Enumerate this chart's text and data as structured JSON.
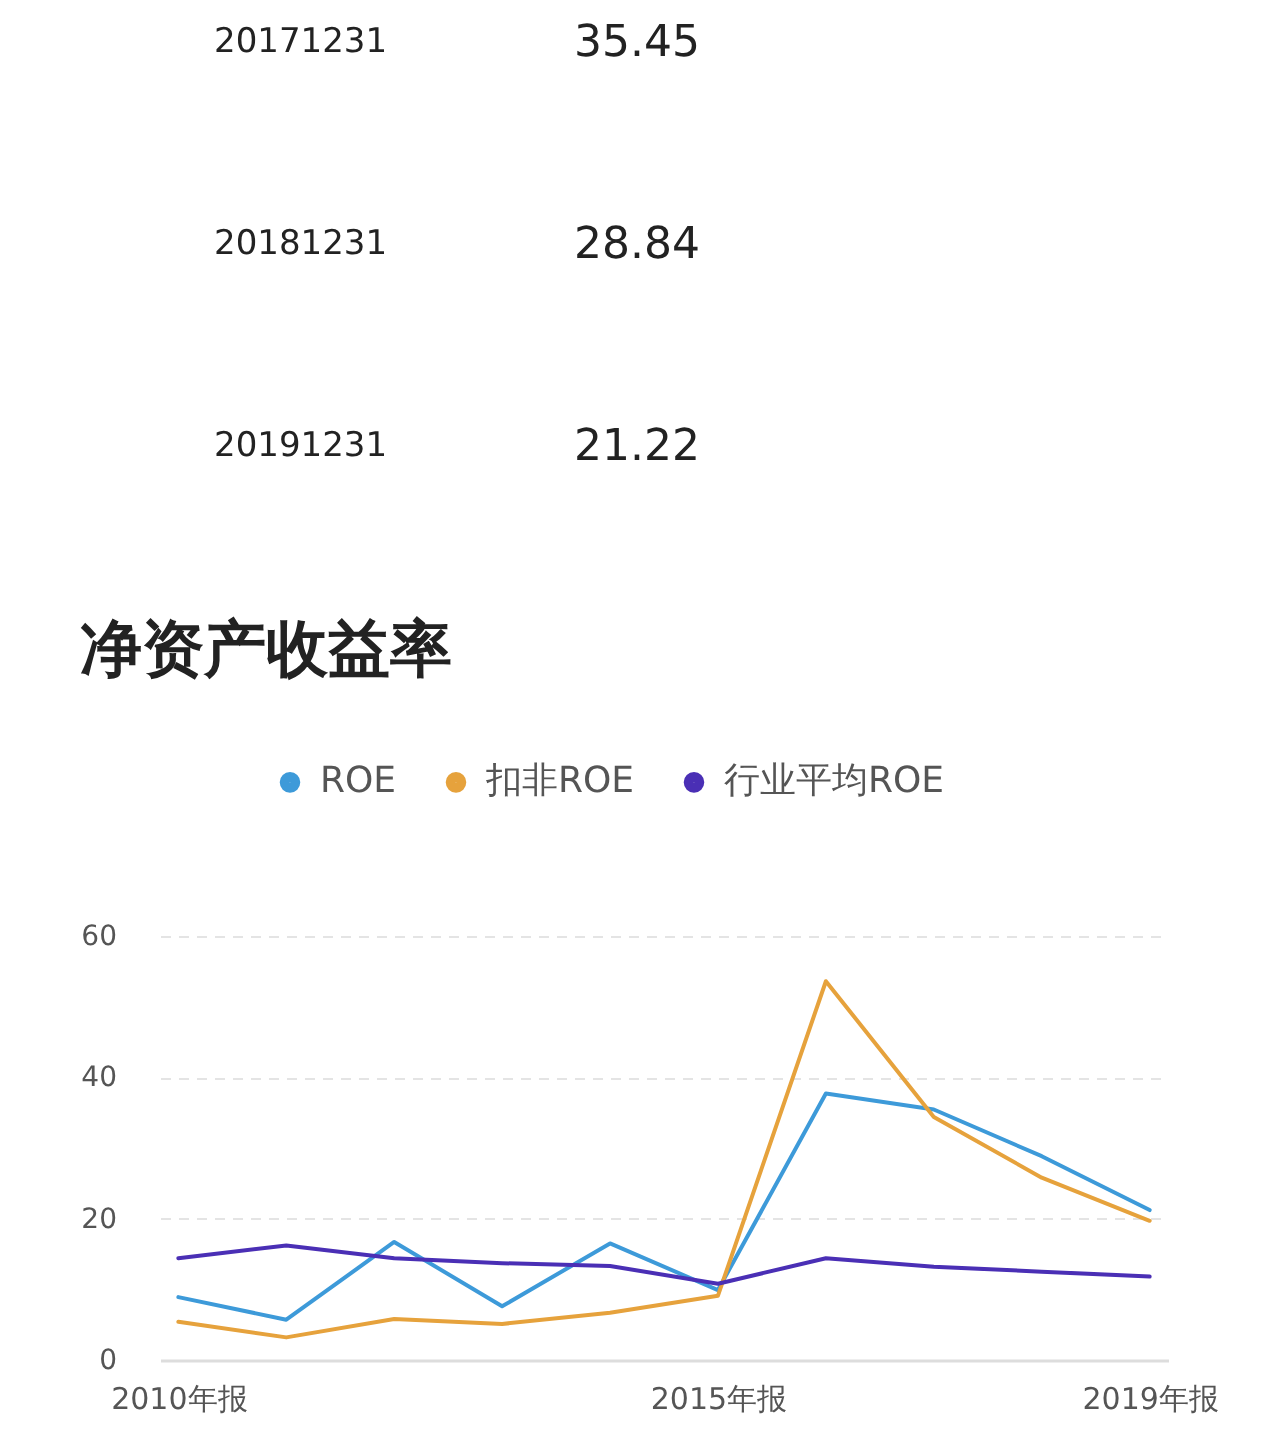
{
  "chart_data": {
    "type": "line",
    "title": "净资产收益率",
    "annotations": [
      "20171231",
      "35.45",
      "20181231",
      "28.84",
      "20191231",
      "21.22"
    ],
    "categories": [
      "2010年报",
      null,
      null,
      null,
      null,
      "2015年报",
      null,
      null,
      null,
      "2019年报"
    ],
    "series": [
      {
        "name": "ROE",
        "color": "#3d9ad9",
        "values": [
          8.9,
          5.7,
          16.7,
          7.6,
          16.5,
          9.9,
          37.7,
          35.45,
          28.84,
          21.22
        ]
      },
      {
        "name": "扣非ROE",
        "color": "#e6a23c",
        "values": [
          5.4,
          3.2,
          5.8,
          5.1,
          6.7,
          9.1,
          53.6,
          34.4,
          25.8,
          19.7
        ]
      },
      {
        "name": "行业平均ROE",
        "color": "#4a2fb5",
        "values": [
          14.4,
          16.2,
          14.4,
          13.7,
          13.3,
          10.8,
          14.4,
          13.2,
          12.5,
          11.8
        ]
      }
    ],
    "ylim": [
      0,
      60
    ],
    "yticks": [
      0,
      20,
      40,
      60
    ],
    "grid": "y",
    "legend": "top",
    "line_style": "solid"
  }
}
